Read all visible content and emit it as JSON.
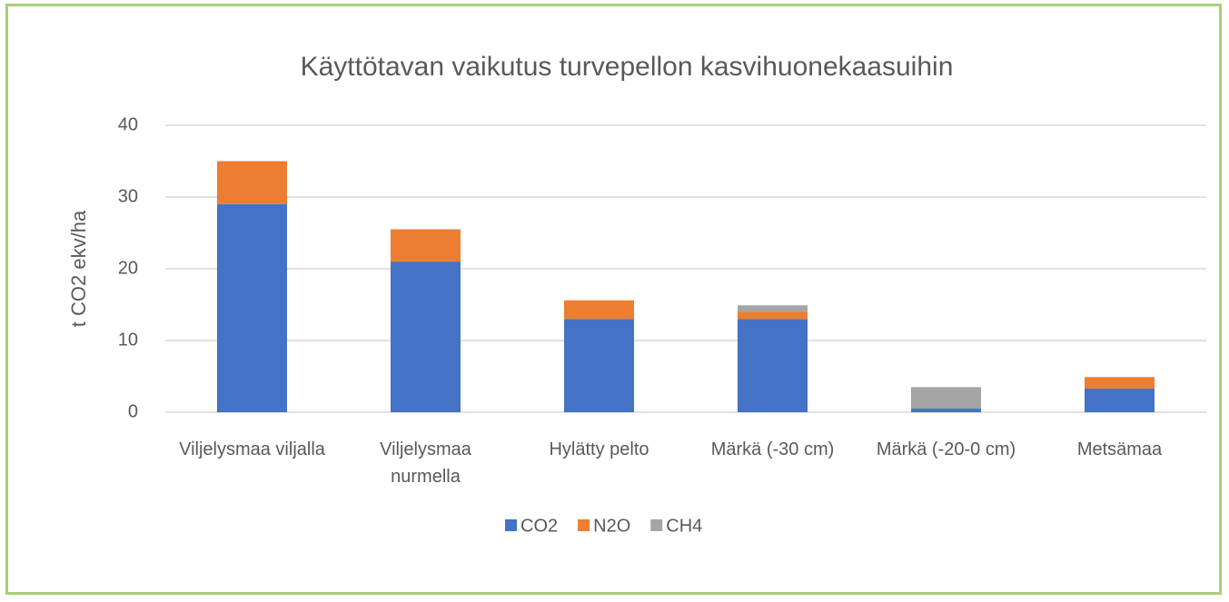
{
  "chart_data": {
    "type": "stacked_bar",
    "title": "Käyttötavan vaikutus turvepellon kasvihuonekaasuihin",
    "y_label": "t CO2 ekv/ha",
    "categories": [
      "Viljelysmaa viljalla",
      "Viljelysmaa nurmella",
      "Hylätty pelto",
      "Märkä (-30 cm)",
      "Märkä (-20-0 cm)",
      "Metsämaa"
    ],
    "series": [
      {
        "name": "CO2",
        "color": "#4472c4",
        "values": [
          29,
          21,
          13,
          13,
          0.5,
          3.3
        ]
      },
      {
        "name": "N2O",
        "color": "#ed7d31",
        "values": [
          6,
          4.5,
          2.6,
          1,
          0,
          1.6
        ]
      },
      {
        "name": "CH4",
        "color": "#a5a5a5",
        "values": [
          0,
          0,
          0,
          0.9,
          3,
          0
        ]
      }
    ],
    "ylim": [
      0,
      40
    ],
    "yticks": [
      0,
      10,
      20,
      30,
      40
    ],
    "grid": true,
    "legend": "bottom"
  }
}
